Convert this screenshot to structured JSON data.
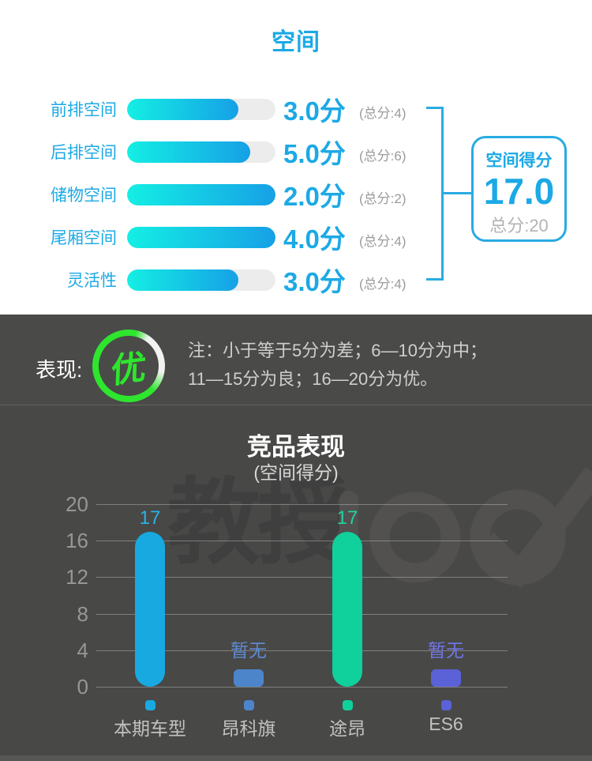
{
  "page": {
    "title": "空间"
  },
  "ratings": {
    "items": [
      {
        "label": "前排空间",
        "score": "3.0分",
        "total": "(总分:4)",
        "percent": 75
      },
      {
        "label": "后排空间",
        "score": "5.0分",
        "total": "(总分:6)",
        "percent": 83
      },
      {
        "label": "储物空间",
        "score": "2.0分",
        "total": "(总分:2)",
        "percent": 100
      },
      {
        "label": "尾厢空间",
        "score": "4.0分",
        "total": "(总分:4)",
        "percent": 100
      },
      {
        "label": "灵活性",
        "score": "3.0分",
        "total": "(总分:4)",
        "percent": 75
      }
    ],
    "summary": {
      "title": "空间得分",
      "score": "17.0",
      "total": "总分:20"
    }
  },
  "performance": {
    "label": "表现:",
    "badge": "优",
    "note_line1": "注：小于等于5分为差；6—10分为中；",
    "note_line2": "11—15分为良；16—20分为优。"
  },
  "watermark": {
    "text": "教授100"
  },
  "chart_data": {
    "type": "bar",
    "title": "竞品表现",
    "subtitle": "(空间得分)",
    "categories": [
      "本期车型",
      "昂科旗",
      "途昂",
      "ES6"
    ],
    "values": [
      17,
      null,
      17,
      null
    ],
    "value_labels": [
      "17",
      "暂无",
      "17",
      "暂无"
    ],
    "bar_colors": [
      "#18A9E1",
      "#4D85CB",
      "#10D09C",
      "#5B61D7"
    ],
    "value_label_colors": [
      "#29B2E8",
      "#5E8AD3",
      "#21D3A0",
      "#7076E4"
    ],
    "ylabel": "",
    "xlabel": "",
    "ylim": [
      0,
      20
    ],
    "yticks": [
      0,
      4,
      8,
      12,
      16,
      20
    ],
    "grid": true,
    "legend_position": "bottom"
  },
  "colors": {
    "accent_blue": "#1CA9E5",
    "badge_green": "#2EE62E",
    "band_bg": "#4A4A49",
    "chart_bg": "#484847",
    "bar_gradient_start": "#14EFE4",
    "bar_gradient_end": "#16A0E6"
  }
}
